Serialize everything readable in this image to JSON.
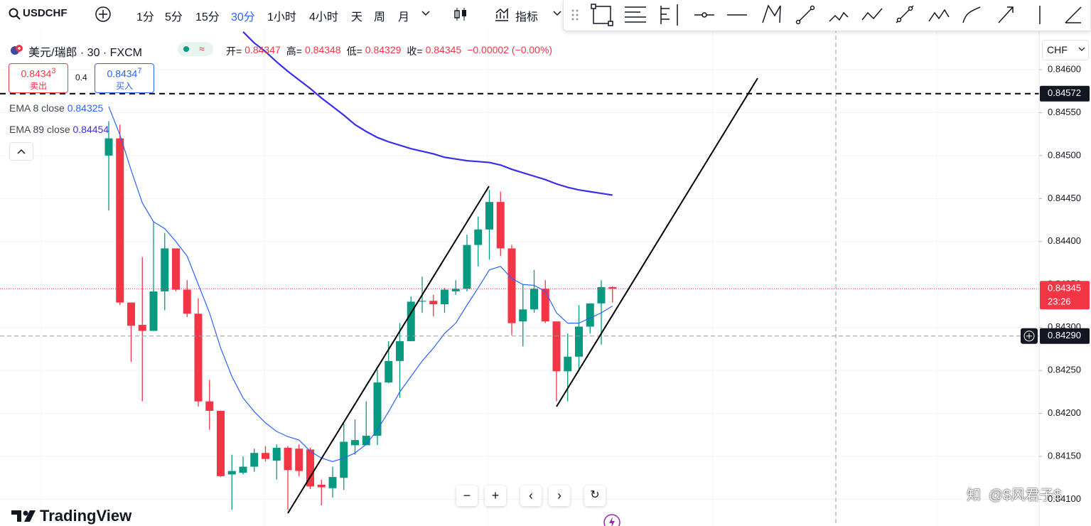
{
  "toolbar": {
    "symbol": "USDCHF",
    "intervals": [
      "1分",
      "5分",
      "15分",
      "30分",
      "1小时",
      "4小时",
      "天",
      "周",
      "月"
    ],
    "indicators": "指标"
  },
  "legend": {
    "title": "美元/瑞郎 · 30 · FXCM",
    "ohlc": [
      {
        "label": "开=",
        "value": "0.84347"
      },
      {
        "label": "高=",
        "value": "0.84348"
      },
      {
        "label": "低=",
        "value": "0.84329"
      },
      {
        "label": "收=",
        "value": "0.84345"
      }
    ],
    "change": "−0.00002 (−0.00%)",
    "bid": {
      "price": "0.8434",
      "pip": "3",
      "label": "卖出"
    },
    "ask": {
      "price": "0.8434",
      "pip": "7",
      "label": "买入"
    },
    "spread": "0.4",
    "indicators": [
      {
        "value": "0.84325"
      },
      {
        "value": "0.84454"
      }
    ]
  },
  "currency": "CHF",
  "brand": "TradingView",
  "watermark": "@$风君子$",
  "chart_data": {
    "type": "candlestick",
    "ylim": [
      0.84069,
      0.84681
    ],
    "yticks": [
      {
        "value": 0.846,
        "label": "0.84600"
      },
      {
        "value": 0.8455,
        "label": "0.84550"
      },
      {
        "value": 0.845,
        "label": "0.84500"
      },
      {
        "value": 0.8445,
        "label": "0.84450"
      },
      {
        "value": 0.844,
        "label": "0.84400"
      },
      {
        "value": 0.8435,
        "label": "0.84350"
      },
      {
        "value": 0.843,
        "label": "0.84300"
      },
      {
        "value": 0.8425,
        "label": "0.84250"
      },
      {
        "value": 0.842,
        "label": "0.84200"
      },
      {
        "value": 0.8415,
        "label": "0.84150"
      },
      {
        "value": 0.841,
        "label": "0.84100"
      }
    ],
    "grid": true,
    "up_color": "#089981",
    "down_color": "#f23645",
    "open": [
      0.845,
      0.8452,
      0.84329,
      0.84303,
      0.84296,
      0.84342,
      0.84392,
      0.84344,
      0.84316,
      0.84214,
      0.84203,
      0.84129,
      0.84131,
      0.84138,
      0.84154,
      0.84145,
      0.8416,
      0.84159,
      0.84158,
      0.84117,
      0.84113,
      0.84125,
      0.84163,
      0.84163,
      0.84174,
      0.84236,
      0.84261,
      0.84284,
      0.8433,
      0.84331,
      0.84327,
      0.84342,
      0.84345,
      0.84396,
      0.84414,
      0.84446,
      0.84392,
      0.84307,
      0.84321,
      0.84345,
      0.84307,
      0.84249,
      0.84266,
      0.84301,
      0.84328,
      0.84347
    ],
    "high": [
      0.8454,
      0.84536,
      0.84329,
      0.84382,
      0.84423,
      0.8441,
      0.84392,
      0.84355,
      0.84334,
      0.84239,
      0.84203,
      0.84152,
      0.8415,
      0.84159,
      0.84162,
      0.84164,
      0.84162,
      0.84164,
      0.8416,
      0.84123,
      0.84138,
      0.84188,
      0.84193,
      0.84214,
      0.84251,
      0.84284,
      0.84305,
      0.84336,
      0.84359,
      0.84338,
      0.84346,
      0.84355,
      0.84408,
      0.84429,
      0.8446,
      0.84458,
      0.84396,
      0.8435,
      0.84367,
      0.84355,
      0.84307,
      0.84293,
      0.84326,
      0.84328,
      0.84355,
      0.84348
    ],
    "low": [
      0.84436,
      0.84326,
      0.8426,
      0.84214,
      0.84296,
      0.8432,
      0.84342,
      0.84312,
      0.84208,
      0.84181,
      0.84126,
      0.84088,
      0.84129,
      0.84132,
      0.84144,
      0.84123,
      0.84088,
      0.84127,
      0.84112,
      0.84093,
      0.84102,
      0.84111,
      0.84152,
      0.84163,
      0.84163,
      0.84235,
      0.84218,
      0.84284,
      0.84317,
      0.84313,
      0.84317,
      0.84338,
      0.84342,
      0.84371,
      0.84379,
      0.84383,
      0.84291,
      0.84278,
      0.84317,
      0.84305,
      0.84214,
      0.84214,
      0.84249,
      0.84293,
      0.8428,
      0.84329
    ],
    "close": [
      0.8452,
      0.84329,
      0.84302,
      0.84296,
      0.84342,
      0.84392,
      0.84344,
      0.84316,
      0.84214,
      0.84203,
      0.84127,
      0.84133,
      0.84138,
      0.84154,
      0.84147,
      0.8416,
      0.84134,
      0.84133,
      0.84115,
      0.84114,
      0.84126,
      0.84167,
      0.84169,
      0.84174,
      0.84236,
      0.84261,
      0.84284,
      0.8433,
      0.84331,
      0.84327,
      0.84344,
      0.84345,
      0.84396,
      0.84414,
      0.84446,
      0.84392,
      0.84305,
      0.84321,
      0.84345,
      0.84307,
      0.84249,
      0.84266,
      0.84301,
      0.84328,
      0.84347,
      0.84345
    ],
    "series": [
      {
        "name": "EMA 8 close",
        "color": "#2962ff",
        "values": [
          0.84557,
          0.84524,
          0.84483,
          0.84445,
          0.84423,
          0.84415,
          0.844,
          0.84383,
          0.8435,
          0.84317,
          0.84276,
          0.84243,
          0.84218,
          0.84202,
          0.84189,
          0.84179,
          0.84173,
          0.84169,
          0.84156,
          0.84148,
          0.84144,
          0.84148,
          0.84154,
          0.84164,
          0.84181,
          0.84202,
          0.84225,
          0.84243,
          0.84261,
          0.84276,
          0.84293,
          0.84305,
          0.84326,
          0.84346,
          0.84367,
          0.84371,
          0.84357,
          0.8435,
          0.84349,
          0.84342,
          0.84317,
          0.84305,
          0.84305,
          0.84311,
          0.84317,
          0.84325
        ]
      },
      {
        "name": "EMA 89 close",
        "color": "#3a2ee6",
        "values": [
          null,
          null,
          null,
          null,
          null,
          null,
          null,
          null,
          null,
          null,
          null,
          null,
          0.84644,
          0.84631,
          0.84621,
          0.84609,
          0.84598,
          0.84588,
          0.84578,
          0.84567,
          0.84557,
          0.84547,
          0.84536,
          0.84528,
          0.84521,
          0.84516,
          0.84512,
          0.84508,
          0.84505,
          0.84502,
          0.84498,
          0.84496,
          0.84494,
          0.84493,
          0.84492,
          0.84489,
          0.84484,
          0.8448,
          0.84476,
          0.84472,
          0.84467,
          0.84463,
          0.8446,
          0.84458,
          0.84456,
          0.84454
        ]
      }
    ],
    "price_lines": [
      {
        "value": 0.84572,
        "label": "0.84572",
        "color": "#131722"
      },
      {
        "value": 0.84345,
        "label": "0.84345",
        "countdown": "23:26",
        "color": "#f23645"
      },
      {
        "value": 0.8429,
        "label": "0.84290",
        "color": "#131722"
      }
    ]
  }
}
